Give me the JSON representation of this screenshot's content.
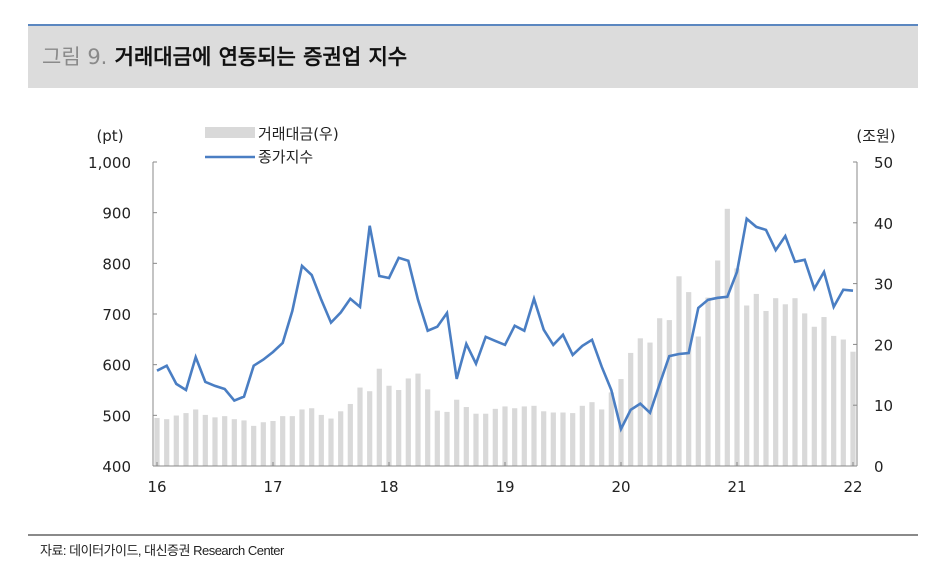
{
  "header": {
    "figure_label": "그림 9.",
    "title": "거래대금에 연동되는 증권업 지수"
  },
  "footer": {
    "source": "자료: 데이터가이드, 대신증권 Research Center"
  },
  "colors": {
    "bar": "#d9d9d9",
    "line": "#4a7ec3",
    "header_bg": "#dcdcdc",
    "top_rule": "#5b87c0"
  },
  "chart_data": {
    "type": "bar+line",
    "title": "",
    "y_left": {
      "unit_label": "(pt)",
      "range": [
        400,
        1000
      ],
      "ticks": [
        "400",
        "500",
        "600",
        "700",
        "800",
        "900",
        "1,000"
      ],
      "tick_values": [
        400,
        500,
        600,
        700,
        800,
        900,
        1000
      ]
    },
    "y_right": {
      "unit_label": "(조원)",
      "range": [
        0,
        50
      ],
      "ticks": [
        "0",
        "10",
        "20",
        "30",
        "40",
        "50"
      ],
      "tick_values": [
        0,
        10,
        20,
        30,
        40,
        50
      ]
    },
    "x_ticks": [
      "16",
      "17",
      "18",
      "19",
      "20",
      "21",
      "22"
    ],
    "grid": false,
    "legend_position": "top-center",
    "x": [
      "2016-01",
      "2016-02",
      "2016-03",
      "2016-04",
      "2016-05",
      "2016-06",
      "2016-07",
      "2016-08",
      "2016-09",
      "2016-10",
      "2016-11",
      "2016-12",
      "2017-01",
      "2017-02",
      "2017-03",
      "2017-04",
      "2017-05",
      "2017-06",
      "2017-07",
      "2017-08",
      "2017-09",
      "2017-10",
      "2017-11",
      "2017-12",
      "2018-01",
      "2018-02",
      "2018-03",
      "2018-04",
      "2018-05",
      "2018-06",
      "2018-07",
      "2018-08",
      "2018-09",
      "2018-10",
      "2018-11",
      "2018-12",
      "2019-01",
      "2019-02",
      "2019-03",
      "2019-04",
      "2019-05",
      "2019-06",
      "2019-07",
      "2019-08",
      "2019-09",
      "2019-10",
      "2019-11",
      "2019-12",
      "2020-01",
      "2020-02",
      "2020-03",
      "2020-04",
      "2020-05",
      "2020-06",
      "2020-07",
      "2020-08",
      "2020-09",
      "2020-10",
      "2020-11",
      "2020-12",
      "2021-01",
      "2021-02",
      "2021-03",
      "2021-04",
      "2021-05",
      "2021-06",
      "2021-07",
      "2021-08",
      "2021-09",
      "2021-10",
      "2021-11",
      "2021-12",
      "2022-01"
    ],
    "series": [
      {
        "name": "거래대금(우)",
        "type": "bar",
        "axis": "right",
        "values": [
          7.9,
          7.7,
          8.3,
          8.7,
          9.3,
          8.4,
          8.0,
          8.2,
          7.7,
          7.5,
          6.6,
          7.2,
          7.4,
          8.2,
          8.2,
          9.3,
          9.5,
          8.4,
          7.8,
          9.0,
          10.2,
          12.9,
          12.3,
          16.0,
          13.2,
          12.5,
          14.4,
          15.2,
          12.6,
          9.1,
          8.9,
          10.9,
          9.7,
          8.6,
          8.6,
          9.4,
          9.8,
          9.5,
          9.8,
          9.9,
          9.0,
          8.8,
          8.8,
          8.7,
          9.9,
          10.5,
          9.3,
          12.1,
          14.3,
          18.6,
          21.0,
          20.3,
          24.3,
          24.0,
          31.2,
          28.6,
          21.3,
          27.7,
          33.8,
          42.3,
          32.5,
          26.4,
          28.3,
          25.5,
          27.6,
          26.6,
          27.6,
          25.1,
          22.9,
          24.5,
          21.4,
          20.8,
          18.8
        ]
      },
      {
        "name": "종가지수",
        "type": "line",
        "axis": "left",
        "values": [
          588,
          598,
          562,
          550,
          615,
          566,
          558,
          552,
          529,
          537,
          598,
          610,
          625,
          643,
          706,
          795,
          777,
          728,
          683,
          703,
          730,
          714,
          874,
          775,
          771,
          811,
          805,
          728,
          667,
          675,
          702,
          572,
          641,
          602,
          655,
          647,
          639,
          677,
          667,
          730,
          669,
          639,
          659,
          619,
          637,
          649,
          596,
          550,
          473,
          511,
          523,
          505,
          562,
          617,
          621,
          623,
          712,
          728,
          732,
          734,
          783,
          888,
          872,
          866,
          826,
          854,
          803,
          807,
          750,
          783,
          714,
          748,
          746
        ]
      }
    ]
  }
}
